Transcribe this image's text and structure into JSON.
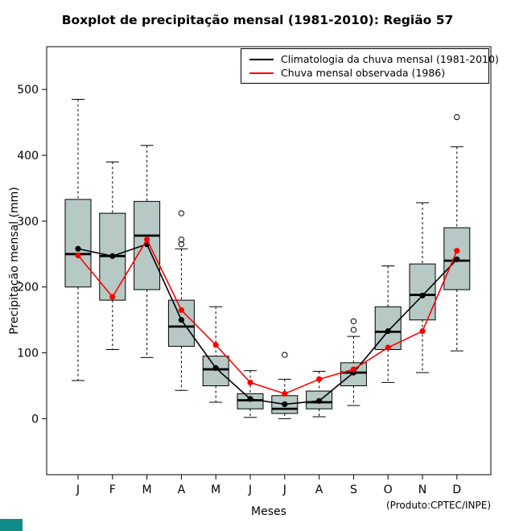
{
  "title": "Boxplot de precipitação mensal (1981-2010): Região 57",
  "footer_note": "(Produto:CPTEC/INPE)",
  "decoration": {
    "corner_color": "#128a8a"
  },
  "chart_data": {
    "type": "boxplot",
    "title": "Boxplot de precipitação mensal (1981-2010): Região 57",
    "xlabel": "Meses",
    "ylabel": "Precipitação mensal (mm)",
    "categories": [
      "J",
      "F",
      "M",
      "A",
      "M",
      "J",
      "J",
      "A",
      "S",
      "O",
      "N",
      "D"
    ],
    "ylim": [
      -85,
      565
    ],
    "yticks": [
      0,
      100,
      200,
      300,
      400,
      500
    ],
    "grid": false,
    "legend_position": "top-right",
    "box_fill": "#b6c9c5",
    "boxes": [
      {
        "low": 58,
        "q1": 200,
        "med": 250,
        "q3": 333,
        "high": 485,
        "outliers": []
      },
      {
        "low": 105,
        "q1": 180,
        "med": 247,
        "q3": 312,
        "high": 390,
        "outliers": []
      },
      {
        "low": 93,
        "q1": 196,
        "med": 278,
        "q3": 330,
        "high": 415,
        "outliers": []
      },
      {
        "low": 43,
        "q1": 110,
        "med": 140,
        "q3": 180,
        "high": 258,
        "outliers": [
          312,
          272,
          265
        ]
      },
      {
        "low": 25,
        "q1": 50,
        "med": 75,
        "q3": 95,
        "high": 170,
        "outliers": []
      },
      {
        "low": 2,
        "q1": 15,
        "med": 28,
        "q3": 38,
        "high": 73,
        "outliers": []
      },
      {
        "low": 0,
        "q1": 8,
        "med": 15,
        "q3": 35,
        "high": 60,
        "outliers": [
          97
        ]
      },
      {
        "low": 3,
        "q1": 15,
        "med": 25,
        "q3": 42,
        "high": 72,
        "outliers": []
      },
      {
        "low": 20,
        "q1": 50,
        "med": 70,
        "q3": 85,
        "high": 125,
        "outliers": [
          135,
          148
        ]
      },
      {
        "low": 55,
        "q1": 105,
        "med": 132,
        "q3": 170,
        "high": 232,
        "outliers": []
      },
      {
        "low": 70,
        "q1": 150,
        "med": 188,
        "q3": 235,
        "high": 328,
        "outliers": []
      },
      {
        "low": 103,
        "q1": 196,
        "med": 240,
        "q3": 290,
        "high": 413,
        "outliers": [
          458
        ]
      }
    ],
    "series": [
      {
        "name": "Climatologia da chuva mensal (1981-2010)",
        "color": "#000000",
        "values": [
          258,
          247,
          265,
          150,
          77,
          30,
          22,
          27,
          70,
          133,
          187,
          242
        ]
      },
      {
        "name": "Chuva mensal observada (1986)",
        "color": "#ff0000",
        "values": [
          248,
          185,
          272,
          165,
          112,
          55,
          38,
          60,
          75,
          108,
          133,
          255
        ]
      }
    ]
  }
}
